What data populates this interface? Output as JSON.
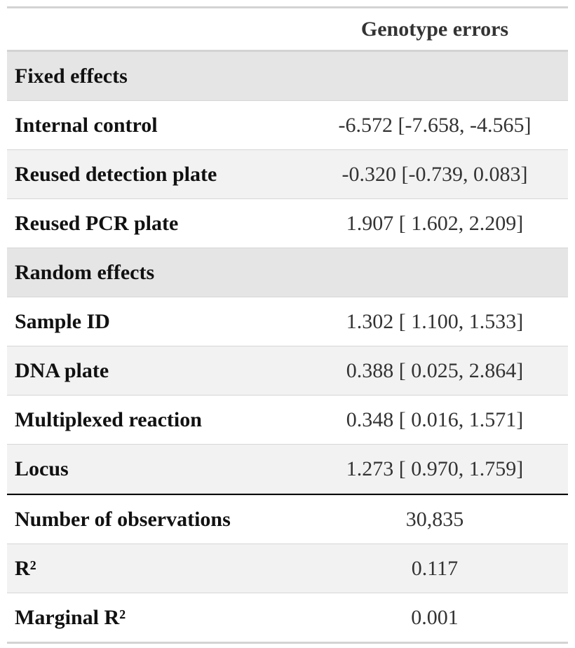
{
  "table": {
    "column_header": "Genotype errors",
    "sections": {
      "fixed": "Fixed effects",
      "random": "Random effects"
    },
    "fixed_rows": [
      {
        "label": "Internal control",
        "value": "-6.572 [-7.658, -4.565]"
      },
      {
        "label": "Reused detection plate",
        "value": "-0.320 [-0.739, 0.083]"
      },
      {
        "label": "Reused PCR plate",
        "value": "1.907 [ 1.602, 2.209]"
      }
    ],
    "random_rows": [
      {
        "label": "Sample ID",
        "value": "1.302 [ 1.100, 1.533]"
      },
      {
        "label": "DNA plate",
        "value": "0.388 [ 0.025, 2.864]"
      },
      {
        "label": "Multiplexed reaction",
        "value": "0.348 [ 0.016, 1.571]"
      },
      {
        "label": "Locus",
        "value": "1.273 [ 0.970, 1.759]"
      }
    ],
    "stats_rows": [
      {
        "label": "Number of observations",
        "value": "30,835"
      },
      {
        "label": "R²",
        "value": "0.117"
      },
      {
        "label": "Marginal R²",
        "value": "0.001"
      }
    ]
  }
}
